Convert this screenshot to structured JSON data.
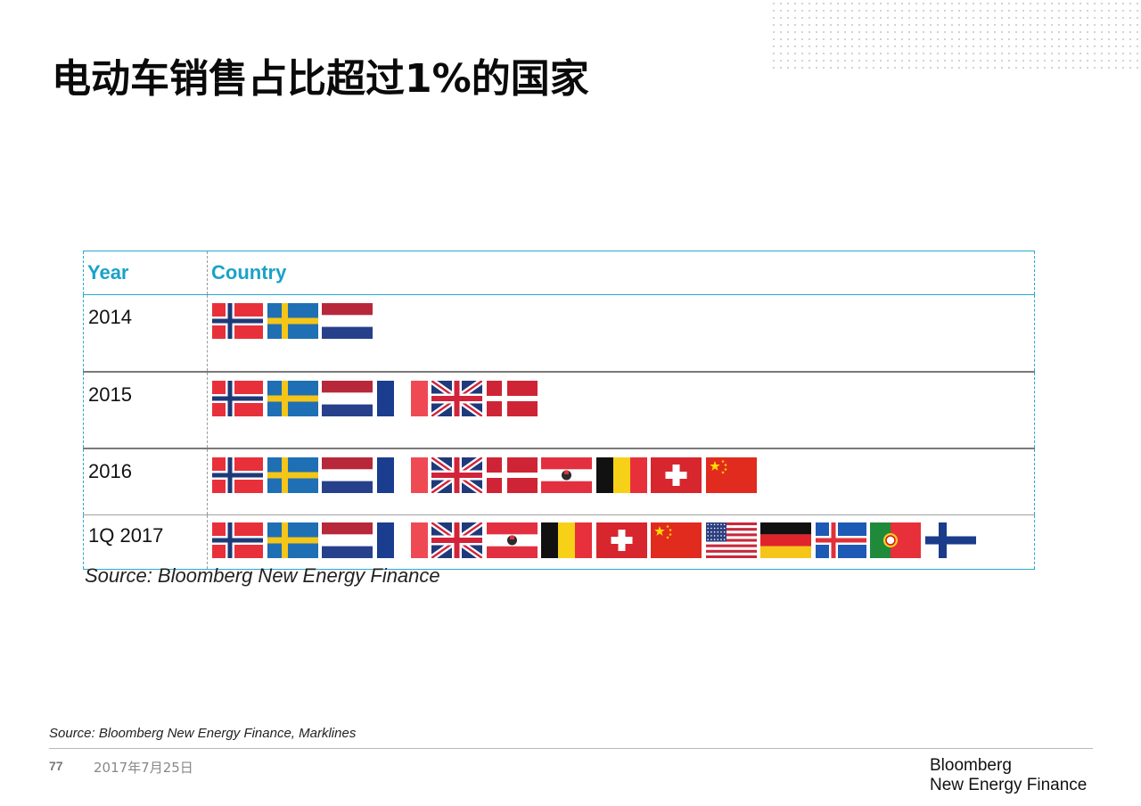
{
  "slide": {
    "title": "电动车销售占比超过1%的国家",
    "source_main": "Source: Bloomberg New Energy Finance",
    "source_footnote": "Source: Bloomberg New Energy Finance, Marklines",
    "page_number": "77",
    "date": "2017年7月25日",
    "logo_line1": "Bloomberg",
    "logo_line2": "New Energy Finance"
  },
  "table": {
    "header_year": "Year",
    "header_country": "Country",
    "header_color": "#1aa2c9",
    "rows": [
      {
        "year": "2014",
        "flags": [
          "norway-flag",
          "sweden-flag",
          "netherlands-flag"
        ]
      },
      {
        "year": "2015",
        "flags": [
          "norway-flag",
          "sweden-flag",
          "netherlands-flag",
          "france-flag",
          "uk-flag",
          "denmark-flag"
        ]
      },
      {
        "year": "2016",
        "flags": [
          "norway-flag",
          "sweden-flag",
          "netherlands-flag",
          "france-flag",
          "uk-flag",
          "denmark-flag",
          "austria-flag",
          "belgium-flag",
          "switzerland-flag",
          "china-flag"
        ]
      },
      {
        "year": "1Q 2017",
        "flags": [
          "norway-flag",
          "sweden-flag",
          "netherlands-flag",
          "france-flag",
          "uk-flag",
          "austria-flag",
          "belgium-flag",
          "switzerland-flag",
          "china-flag",
          "usa-flag",
          "germany-flag",
          "iceland-flag",
          "portugal-flag",
          "finland-flag"
        ]
      }
    ]
  }
}
